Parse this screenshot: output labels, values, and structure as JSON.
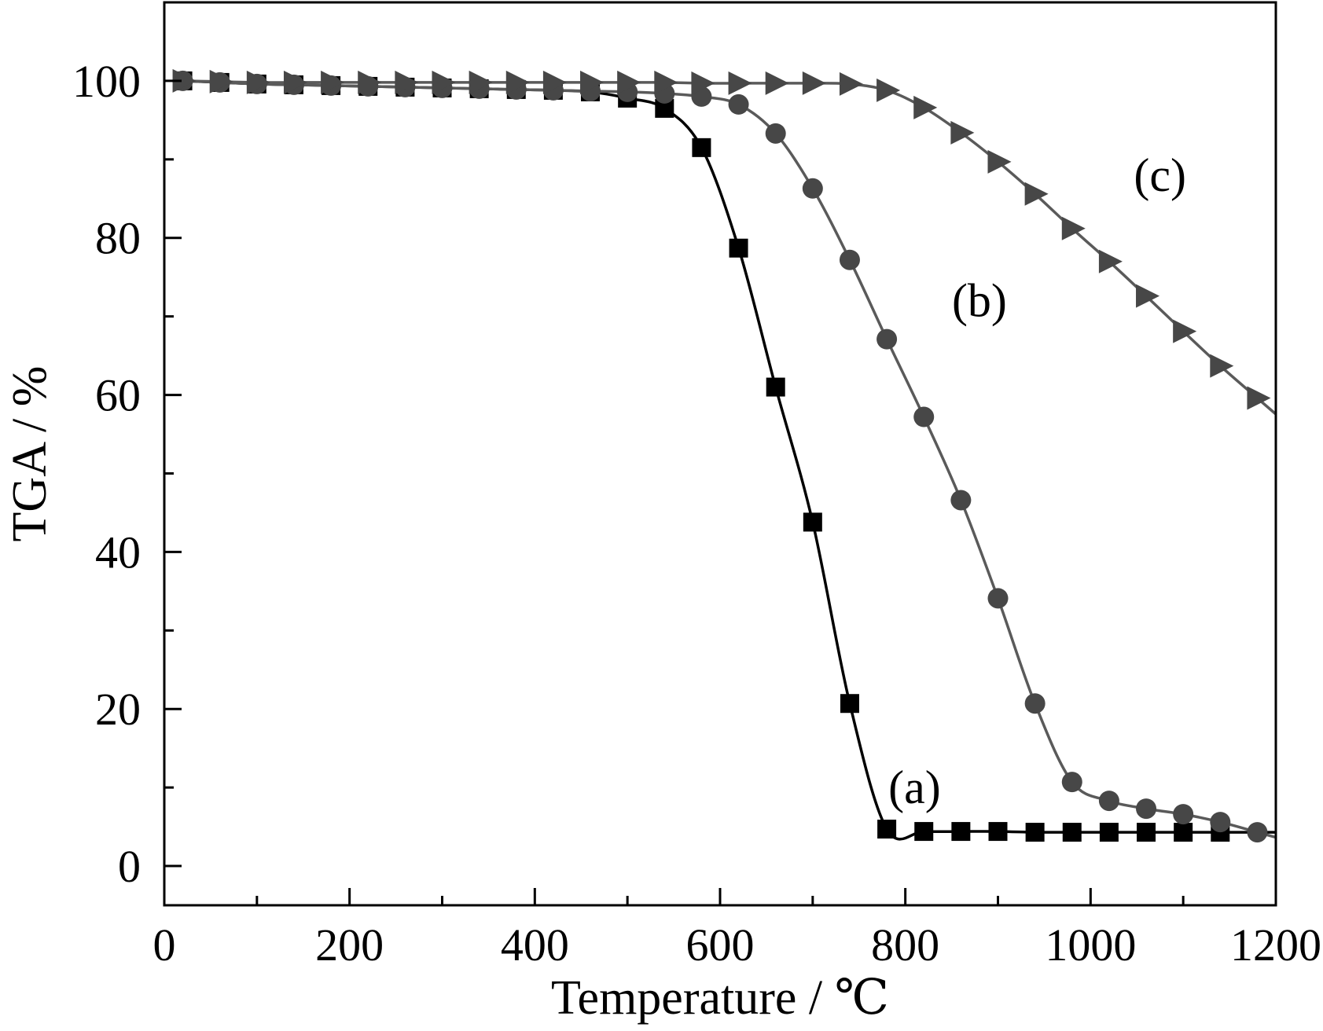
{
  "chart_data": {
    "type": "line",
    "title": "",
    "xlabel": "Temperature / ℃",
    "ylabel": "TGA / %",
    "xlim": [
      0,
      1200
    ],
    "ylim": [
      -5,
      110
    ],
    "xticks": [
      0,
      200,
      400,
      600,
      800,
      1000,
      1200
    ],
    "xtick_labels": [
      "0",
      "200",
      "400",
      "600",
      "800",
      "1000",
      "1200"
    ],
    "yticks": [
      0,
      20,
      40,
      60,
      80,
      100
    ],
    "ytick_labels": [
      "0",
      "20",
      "40",
      "60",
      "80",
      "100"
    ],
    "grid": false,
    "legend": "none",
    "annotations": [
      {
        "text": "(a)",
        "x": 810,
        "y": 8
      },
      {
        "text": "(b)",
        "x": 880,
        "y": 70
      },
      {
        "text": "(c)",
        "x": 1075,
        "y": 86
      }
    ],
    "series": [
      {
        "marker": "square",
        "color": "#000000",
        "line_color": "#000000",
        "x": [
          20,
          60,
          100,
          140,
          180,
          220,
          260,
          300,
          340,
          380,
          420,
          460,
          500,
          540,
          580,
          620,
          660,
          700,
          740,
          780,
          820,
          860,
          900,
          940,
          980,
          1020,
          1060,
          1100,
          1140
        ],
        "y": [
          100,
          99.8,
          99.6,
          99.5,
          99.4,
          99.3,
          99.2,
          99.1,
          99.0,
          98.9,
          98.8,
          98.6,
          97.8,
          96.5,
          91.5,
          78.7,
          61.0,
          43.8,
          20.7,
          4.7,
          4.4,
          4.4,
          4.4,
          4.3,
          4.3,
          4.3,
          4.3,
          4.3,
          4.3
        ]
      },
      {
        "marker": "circle",
        "color": "#474747",
        "line_color": "#5a5a5a",
        "x": [
          20,
          60,
          100,
          140,
          180,
          220,
          260,
          300,
          340,
          380,
          420,
          460,
          500,
          540,
          580,
          620,
          660,
          700,
          740,
          780,
          820,
          860,
          900,
          940,
          980,
          1020,
          1060,
          1100,
          1140,
          1180
        ],
        "y": [
          100,
          99.8,
          99.6,
          99.5,
          99.4,
          99.3,
          99.2,
          99.1,
          99.0,
          98.9,
          98.8,
          98.7,
          98.6,
          98.4,
          98.0,
          97.0,
          93.3,
          86.3,
          77.2,
          67.1,
          57.2,
          46.6,
          34.1,
          20.7,
          10.7,
          8.3,
          7.3,
          6.6,
          5.6,
          4.3
        ]
      },
      {
        "marker": "triangle-right",
        "color": "#474747",
        "line_color": "#5a5a5a",
        "x": [
          20,
          60,
          100,
          140,
          180,
          220,
          260,
          300,
          340,
          380,
          420,
          460,
          500,
          540,
          580,
          620,
          660,
          700,
          740,
          780,
          820,
          860,
          900,
          940,
          980,
          1020,
          1060,
          1100,
          1140,
          1180
        ],
        "y": [
          100,
          99.9,
          99.8,
          99.8,
          99.8,
          99.8,
          99.8,
          99.8,
          99.8,
          99.8,
          99.8,
          99.8,
          99.8,
          99.8,
          99.7,
          99.7,
          99.7,
          99.7,
          99.6,
          98.8,
          96.6,
          93.4,
          89.7,
          85.6,
          81.2,
          77.0,
          72.6,
          68.1,
          63.7,
          59.6
        ]
      }
    ]
  }
}
